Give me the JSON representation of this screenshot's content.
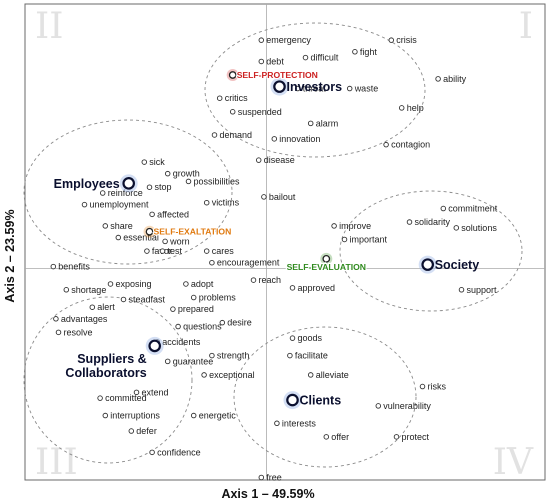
{
  "chart_data": {
    "type": "scatter",
    "xlabel": "Axis 1 – 49.59%",
    "ylabel": "Axis 2 – 23.59%",
    "quadrant_labels": [
      "I",
      "II",
      "III",
      "IV"
    ],
    "grid": false,
    "colors": {
      "self_protection": "#cc2222",
      "self_exaltation": "#e07a10",
      "self_evaluation": "#2f8a1e",
      "stakeholder_halo": "#9fb8e6",
      "cluster_outline": "#8a8a8a"
    },
    "points": [
      {
        "label": "emergency",
        "x": -0.02,
        "y": 1.18,
        "kind": "word"
      },
      {
        "label": "debt",
        "x": -0.02,
        "y": 1.07,
        "kind": "word"
      },
      {
        "label": "difficult",
        "x": 0.15,
        "y": 1.09,
        "kind": "word"
      },
      {
        "label": "fight",
        "x": 0.34,
        "y": 1.12,
        "kind": "word"
      },
      {
        "label": "crisis",
        "x": 0.48,
        "y": 1.18,
        "kind": "word"
      },
      {
        "label": "ability",
        "x": 0.66,
        "y": 0.98,
        "kind": "word"
      },
      {
        "label": "critics",
        "x": -0.18,
        "y": 0.88,
        "kind": "word"
      },
      {
        "label": "threat",
        "x": 0.12,
        "y": 0.93,
        "kind": "word"
      },
      {
        "label": "waste",
        "x": 0.32,
        "y": 0.93,
        "kind": "word"
      },
      {
        "label": "help",
        "x": 0.52,
        "y": 0.83,
        "kind": "word"
      },
      {
        "label": "suspended",
        "x": -0.13,
        "y": 0.81,
        "kind": "word"
      },
      {
        "label": "alarm",
        "x": 0.17,
        "y": 0.75,
        "kind": "word"
      },
      {
        "label": "demand",
        "x": -0.2,
        "y": 0.69,
        "kind": "word"
      },
      {
        "label": "innovation",
        "x": 0.03,
        "y": 0.67,
        "kind": "word"
      },
      {
        "label": "contagion",
        "x": 0.46,
        "y": 0.64,
        "kind": "word"
      },
      {
        "label": "sick",
        "x": -0.47,
        "y": 0.55,
        "kind": "word"
      },
      {
        "label": "disease",
        "x": -0.03,
        "y": 0.56,
        "kind": "word"
      },
      {
        "label": "growth",
        "x": -0.38,
        "y": 0.49,
        "kind": "word"
      },
      {
        "label": "stop",
        "x": -0.45,
        "y": 0.42,
        "kind": "word"
      },
      {
        "label": "possibilities",
        "x": -0.3,
        "y": 0.45,
        "kind": "word"
      },
      {
        "label": "reinforce",
        "x": -0.63,
        "y": 0.39,
        "kind": "word"
      },
      {
        "label": "bailout",
        "x": -0.01,
        "y": 0.37,
        "kind": "word"
      },
      {
        "label": "victims",
        "x": -0.23,
        "y": 0.34,
        "kind": "word"
      },
      {
        "label": "unemployment",
        "x": -0.7,
        "y": 0.33,
        "kind": "word"
      },
      {
        "label": "affected",
        "x": -0.44,
        "y": 0.28,
        "kind": "word"
      },
      {
        "label": "share",
        "x": -0.62,
        "y": 0.22,
        "kind": "word"
      },
      {
        "label": "worn",
        "x": -0.39,
        "y": 0.14,
        "kind": "word"
      },
      {
        "label": "essential",
        "x": -0.57,
        "y": 0.16,
        "kind": "word"
      },
      {
        "label": "favor",
        "x": -0.46,
        "y": 0.09,
        "kind": "word"
      },
      {
        "label": "test",
        "x": -0.4,
        "y": 0.09,
        "kind": "word"
      },
      {
        "label": "cares",
        "x": -0.23,
        "y": 0.09,
        "kind": "word"
      },
      {
        "label": "encouragement",
        "x": -0.21,
        "y": 0.03,
        "kind": "word"
      },
      {
        "label": "benefits",
        "x": -0.82,
        "y": 0.01,
        "kind": "word"
      },
      {
        "label": "improve",
        "x": 0.26,
        "y": 0.22,
        "kind": "word"
      },
      {
        "label": "important",
        "x": 0.3,
        "y": 0.15,
        "kind": "word"
      },
      {
        "label": "commitment",
        "x": 0.68,
        "y": 0.31,
        "kind": "word"
      },
      {
        "label": "solidarity",
        "x": 0.55,
        "y": 0.24,
        "kind": "word"
      },
      {
        "label": "solutions",
        "x": 0.73,
        "y": 0.21,
        "kind": "word"
      },
      {
        "label": "support",
        "x": 0.75,
        "y": -0.11,
        "kind": "word"
      },
      {
        "label": "reach",
        "x": -0.05,
        "y": -0.06,
        "kind": "word"
      },
      {
        "label": "approved",
        "x": 0.1,
        "y": -0.1,
        "kind": "word"
      },
      {
        "label": "shortage",
        "x": -0.77,
        "y": -0.11,
        "kind": "word"
      },
      {
        "label": "exposing",
        "x": -0.6,
        "y": -0.08,
        "kind": "word"
      },
      {
        "label": "adopt",
        "x": -0.31,
        "y": -0.08,
        "kind": "word"
      },
      {
        "label": "steadfast",
        "x": -0.55,
        "y": -0.16,
        "kind": "word"
      },
      {
        "label": "problems",
        "x": -0.28,
        "y": -0.15,
        "kind": "word"
      },
      {
        "label": "alert",
        "x": -0.67,
        "y": -0.2,
        "kind": "word"
      },
      {
        "label": "prepared",
        "x": -0.36,
        "y": -0.21,
        "kind": "word"
      },
      {
        "label": "advantages",
        "x": -0.81,
        "y": -0.26,
        "kind": "word"
      },
      {
        "label": "desire",
        "x": -0.17,
        "y": -0.28,
        "kind": "word"
      },
      {
        "label": "questions",
        "x": -0.34,
        "y": -0.3,
        "kind": "word"
      },
      {
        "label": "resolve",
        "x": -0.8,
        "y": -0.33,
        "kind": "word"
      },
      {
        "label": "accidents",
        "x": -0.42,
        "y": -0.38,
        "kind": "word"
      },
      {
        "label": "goods",
        "x": 0.1,
        "y": -0.36,
        "kind": "word"
      },
      {
        "label": "strength",
        "x": -0.21,
        "y": -0.45,
        "kind": "word"
      },
      {
        "label": "guarantee",
        "x": -0.38,
        "y": -0.48,
        "kind": "word"
      },
      {
        "label": "facilitate",
        "x": 0.09,
        "y": -0.45,
        "kind": "word"
      },
      {
        "label": "exceptional",
        "x": -0.24,
        "y": -0.55,
        "kind": "word"
      },
      {
        "label": "alleviate",
        "x": 0.17,
        "y": -0.55,
        "kind": "word"
      },
      {
        "label": "extend",
        "x": -0.5,
        "y": -0.64,
        "kind": "word"
      },
      {
        "label": "risks",
        "x": 0.6,
        "y": -0.61,
        "kind": "word"
      },
      {
        "label": "committed",
        "x": -0.64,
        "y": -0.67,
        "kind": "word"
      },
      {
        "label": "vulnerability",
        "x": 0.43,
        "y": -0.71,
        "kind": "word"
      },
      {
        "label": "interruptions",
        "x": -0.62,
        "y": -0.76,
        "kind": "word"
      },
      {
        "label": "energetic",
        "x": -0.28,
        "y": -0.76,
        "kind": "word"
      },
      {
        "label": "interests",
        "x": 0.04,
        "y": -0.8,
        "kind": "word"
      },
      {
        "label": "defer",
        "x": -0.52,
        "y": -0.84,
        "kind": "word"
      },
      {
        "label": "offer",
        "x": 0.23,
        "y": -0.87,
        "kind": "word"
      },
      {
        "label": "protect",
        "x": 0.5,
        "y": -0.87,
        "kind": "word"
      },
      {
        "label": "confidence",
        "x": -0.44,
        "y": -0.95,
        "kind": "word"
      },
      {
        "label": "free",
        "x": -0.02,
        "y": -1.08,
        "kind": "word"
      },
      {
        "label": "Investors",
        "x": 0.05,
        "y": 0.94,
        "kind": "stakeholder"
      },
      {
        "label": "Employees",
        "x": -0.53,
        "y": 0.44,
        "kind": "stakeholder"
      },
      {
        "label": "Society",
        "x": 0.62,
        "y": 0.02,
        "kind": "stakeholder"
      },
      {
        "label": "Suppliers &",
        "x": -0.43,
        "y": -0.4,
        "kind": "stakeholder"
      },
      {
        "label": "Clients",
        "x": 0.1,
        "y": -0.68,
        "kind": "stakeholder"
      },
      {
        "label": "SELF-PROTECTION",
        "x": -0.13,
        "y": 1.0,
        "kind": "self_protection"
      },
      {
        "label": "SELF-EXALTATION",
        "x": -0.45,
        "y": 0.19,
        "kind": "self_exaltation"
      },
      {
        "label": "SELF-EVALUATION",
        "x": 0.23,
        "y": 0.05,
        "kind": "self_evaluation"
      }
    ],
    "second_line": {
      "Suppliers &": "Collaborators"
    },
    "xlim": [
      -1.0,
      1.0
    ],
    "ylim": [
      -1.23,
      1.23
    ]
  }
}
